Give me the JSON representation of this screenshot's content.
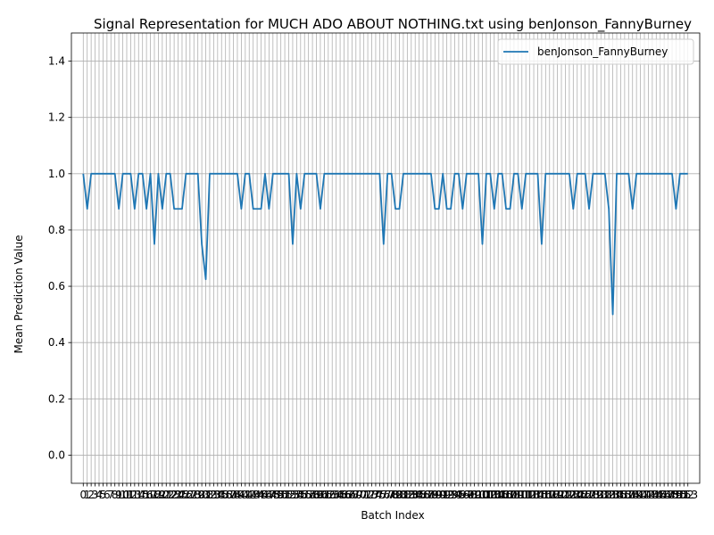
{
  "chart_data": {
    "type": "line",
    "title": "Signal Representation for MUCH ADO ABOUT NOTHING.txt using benJonson_FannyBurney",
    "xlabel": "Batch Index",
    "ylabel": "Mean Prediction Value",
    "xlim": [
      -3,
      156
    ],
    "ylim": [
      -0.1,
      1.5
    ],
    "yticks": [
      "0.0",
      "0.2",
      "0.4",
      "0.6",
      "0.8",
      "1.0",
      "1.2",
      "1.4"
    ],
    "grid": true,
    "legend_position": "top-right",
    "color": "#1f77b4",
    "series": [
      {
        "name": "benJonson_FannyBurney",
        "x_start": 0,
        "values": [
          1.0,
          0.875,
          1.0,
          1.0,
          1.0,
          1.0,
          1.0,
          1.0,
          1.0,
          0.875,
          1.0,
          1.0,
          1.0,
          0.875,
          1.0,
          1.0,
          0.875,
          1.0,
          0.75,
          1.0,
          0.875,
          1.0,
          1.0,
          0.875,
          0.875,
          0.875,
          1.0,
          1.0,
          1.0,
          1.0,
          0.75,
          0.625,
          1.0,
          1.0,
          1.0,
          1.0,
          1.0,
          1.0,
          1.0,
          1.0,
          0.875,
          1.0,
          1.0,
          0.875,
          0.875,
          0.875,
          1.0,
          0.875,
          1.0,
          1.0,
          1.0,
          1.0,
          1.0,
          0.75,
          1.0,
          0.875,
          1.0,
          1.0,
          1.0,
          1.0,
          0.875,
          1.0,
          1.0,
          1.0,
          1.0,
          1.0,
          1.0,
          1.0,
          1.0,
          1.0,
          1.0,
          1.0,
          1.0,
          1.0,
          1.0,
          1.0,
          0.75,
          1.0,
          1.0,
          0.875,
          0.875,
          1.0,
          1.0,
          1.0,
          1.0,
          1.0,
          1.0,
          1.0,
          1.0,
          0.875,
          0.875,
          1.0,
          0.875,
          0.875,
          1.0,
          1.0,
          0.875,
          1.0,
          1.0,
          1.0,
          1.0,
          0.75,
          1.0,
          1.0,
          0.875,
          1.0,
          1.0,
          0.875,
          0.875,
          1.0,
          1.0,
          0.875,
          1.0,
          1.0,
          1.0,
          1.0,
          0.75,
          1.0,
          1.0,
          1.0,
          1.0,
          1.0,
          1.0,
          1.0,
          0.875,
          1.0,
          1.0,
          1.0,
          0.875,
          1.0,
          1.0,
          1.0,
          1.0,
          0.875,
          0.5,
          1.0,
          1.0,
          1.0,
          1.0,
          0.875,
          1.0,
          1.0,
          1.0,
          1.0,
          1.0,
          1.0,
          1.0,
          1.0,
          1.0,
          1.0,
          0.875,
          1.0,
          1.0,
          1.0
        ]
      }
    ]
  }
}
